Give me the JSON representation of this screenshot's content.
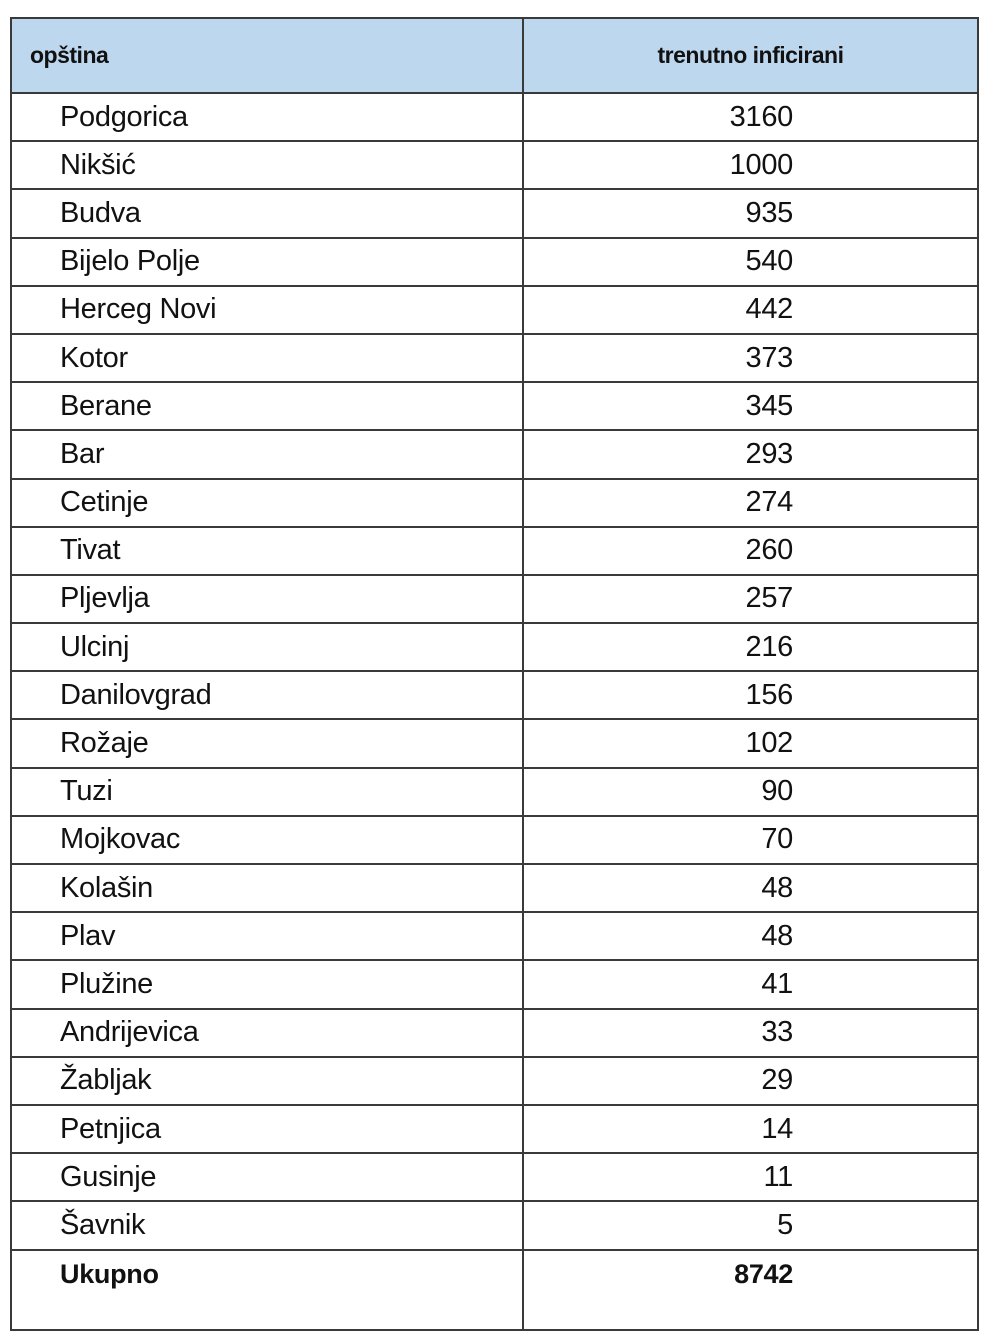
{
  "table": {
    "headers": {
      "municipality": "opština",
      "infected": "trenutno inficirani"
    },
    "rows": [
      {
        "name": "Podgorica",
        "value": "3160"
      },
      {
        "name": "Nikšić",
        "value": "1000"
      },
      {
        "name": "Budva",
        "value": "935"
      },
      {
        "name": "Bijelo Polje",
        "value": "540"
      },
      {
        "name": "Herceg Novi",
        "value": "442"
      },
      {
        "name": "Kotor",
        "value": "373"
      },
      {
        "name": "Berane",
        "value": "345"
      },
      {
        "name": "Bar",
        "value": "293"
      },
      {
        "name": "Cetinje",
        "value": "274"
      },
      {
        "name": "Tivat",
        "value": "260"
      },
      {
        "name": "Pljevlja",
        "value": "257"
      },
      {
        "name": "Ulcinj",
        "value": "216"
      },
      {
        "name": "Danilovgrad",
        "value": "156"
      },
      {
        "name": "Rožaje",
        "value": "102"
      },
      {
        "name": "Tuzi",
        "value": "90"
      },
      {
        "name": "Mojkovac",
        "value": "70"
      },
      {
        "name": "Kolašin",
        "value": "48"
      },
      {
        "name": "Plav",
        "value": "48"
      },
      {
        "name": "Plužine",
        "value": "41"
      },
      {
        "name": "Andrijevica",
        "value": "33"
      },
      {
        "name": "Žabljak",
        "value": "29"
      },
      {
        "name": "Petnjica",
        "value": "14"
      },
      {
        "name": "Gusinje",
        "value": "11"
      },
      {
        "name": "Šavnik",
        "value": "5"
      }
    ],
    "total": {
      "name": "Ukupno",
      "value": "8742"
    },
    "header_color": "#bdd7ee"
  }
}
